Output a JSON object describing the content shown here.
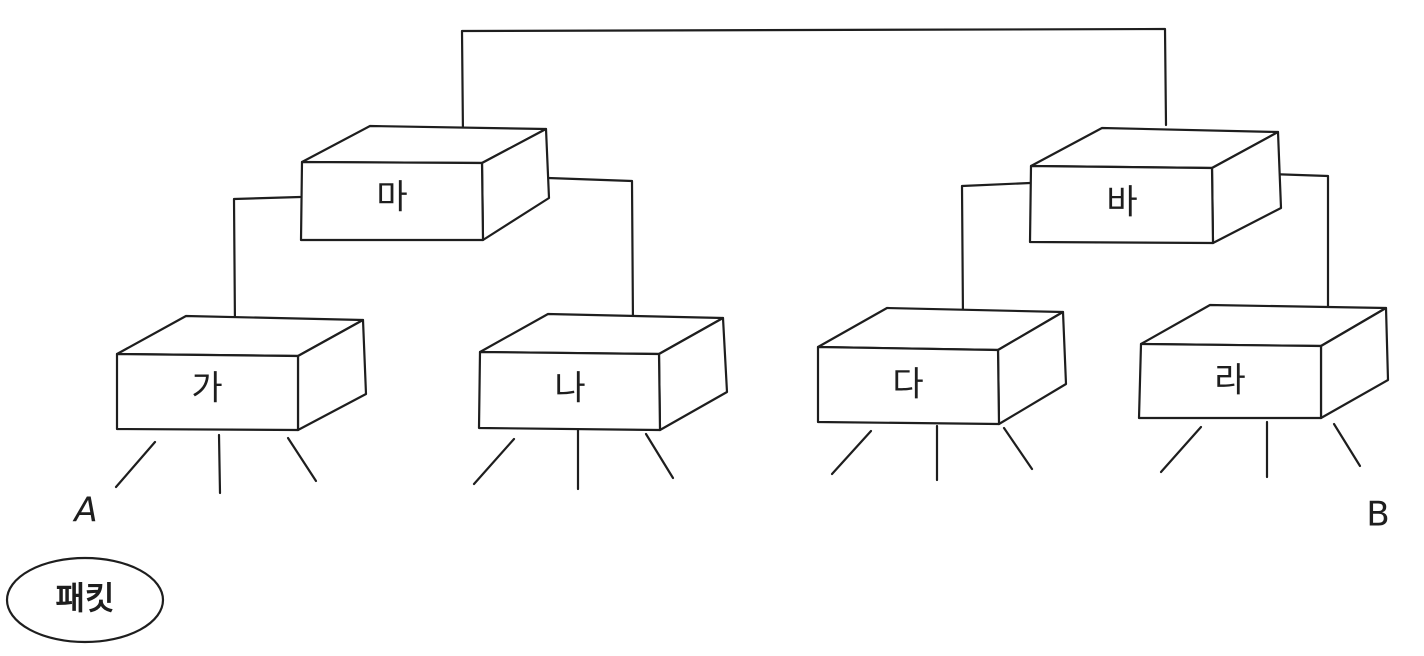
{
  "switches": {
    "ma": "마",
    "ba": "바",
    "ga": "가",
    "na": "나",
    "da": "다",
    "ra": "라"
  },
  "endpoints": {
    "a": "A",
    "b": "B"
  },
  "packet": {
    "label": "패킷"
  }
}
